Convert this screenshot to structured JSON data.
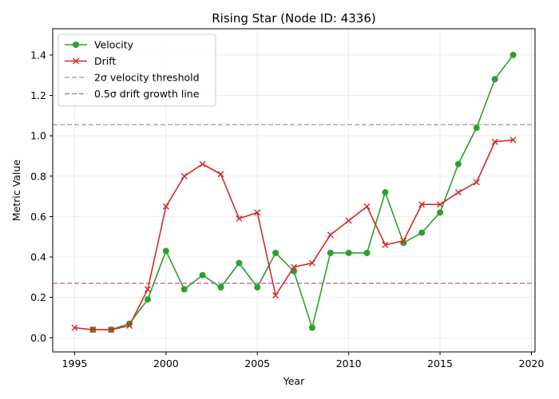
{
  "chart_data": {
    "type": "line",
    "title": "Rising Star (Node ID: 4336)",
    "xlabel": "Year",
    "ylabel": "Metric Value",
    "xlim": [
      1993.8,
      2020.2
    ],
    "ylim": [
      -0.07,
      1.53
    ],
    "xticks": [
      1995,
      2000,
      2005,
      2010,
      2015,
      2020
    ],
    "yticks": [
      0.0,
      0.2,
      0.4,
      0.6,
      0.8,
      1.0,
      1.2,
      1.4
    ],
    "xtick_labels": [
      "1995",
      "2000",
      "2005",
      "2010",
      "2015",
      "2020"
    ],
    "ytick_labels": [
      "0.0",
      "0.2",
      "0.4",
      "0.6",
      "0.8",
      "1.0",
      "1.2",
      "1.4"
    ],
    "grid": true,
    "legend_position": "top-left",
    "series": [
      {
        "name": "Velocity",
        "color": "#2ca02c",
        "marker": "circle",
        "x": [
          1996,
          1997,
          1998,
          1999,
          2000,
          2001,
          2002,
          2003,
          2004,
          2005,
          2006,
          2007,
          2008,
          2009,
          2010,
          2011,
          2012,
          2013,
          2014,
          2015,
          2016,
          2017,
          2018,
          2019
        ],
        "y": [
          0.04,
          0.04,
          0.07,
          0.19,
          0.43,
          0.24,
          0.31,
          0.25,
          0.37,
          0.25,
          0.42,
          0.33,
          0.05,
          0.42,
          0.42,
          0.42,
          0.72,
          0.47,
          0.52,
          0.62,
          0.86,
          1.04,
          1.28,
          1.4
        ]
      },
      {
        "name": "Drift",
        "color": "#d62728",
        "marker": "x",
        "x": [
          1995,
          1996,
          1997,
          1998,
          1999,
          2000,
          2001,
          2002,
          2003,
          2004,
          2005,
          2006,
          2007,
          2008,
          2009,
          2010,
          2011,
          2012,
          2013,
          2014,
          2015,
          2016,
          2017,
          2018,
          2019
        ],
        "y": [
          0.05,
          0.04,
          0.04,
          0.06,
          0.24,
          0.65,
          0.8,
          0.86,
          0.81,
          0.59,
          0.62,
          0.21,
          0.35,
          0.37,
          0.51,
          0.58,
          0.65,
          0.46,
          0.48,
          0.66,
          0.66,
          0.72,
          0.77,
          0.97,
          0.98
        ]
      }
    ],
    "reference_lines": [
      {
        "name": "2σ velocity threshold",
        "y": 1.055,
        "color": "#aaaaaa",
        "style": "dashed"
      },
      {
        "name": "0.5σ drift growth line",
        "y": 0.27,
        "color": "#c875b0",
        "style": "dashed"
      }
    ]
  }
}
